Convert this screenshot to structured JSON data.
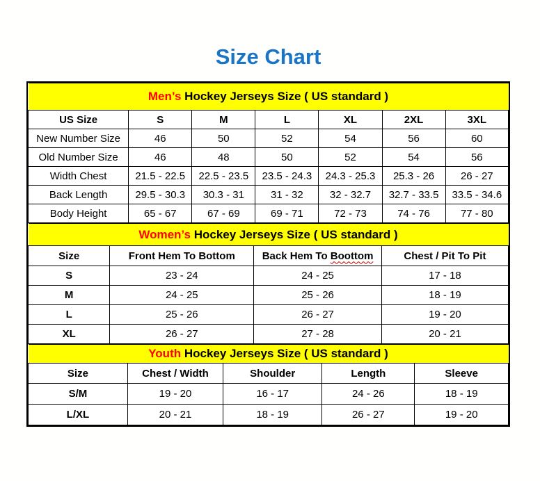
{
  "page": {
    "title": "Size Chart"
  },
  "colors": {
    "title_blue": "#1B74C4",
    "section_header_yellow": "#FFFF00",
    "section_highlight_red": "#FF0000",
    "border_black": "#000000"
  },
  "tables": [
    {
      "id": "mens",
      "title": {
        "highlight": "Men’s",
        "rest": "Hockey Jerseys Size ( US standard )"
      },
      "columns": [
        {
          "label": "US Size"
        },
        {
          "label": "S"
        },
        {
          "label": "M"
        },
        {
          "label": "L"
        },
        {
          "label": "XL"
        },
        {
          "label": "2XL"
        },
        {
          "label": "3XL"
        }
      ],
      "col_widths": [
        "20.9%",
        "13.2%",
        "13.2%",
        "13.2%",
        "13.2%",
        "13.2%",
        "13.1%"
      ],
      "rows": [
        {
          "label": "New Number Size",
          "values": [
            "46",
            "50",
            "52",
            "54",
            "56",
            "60"
          ]
        },
        {
          "label": "Old Number Size",
          "values": [
            "46",
            "48",
            "50",
            "52",
            "54",
            "56"
          ]
        },
        {
          "label": "Width Chest",
          "values": [
            "21.5 - 22.5",
            "22.5 - 23.5",
            "23.5 - 24.3",
            "24.3 - 25.3",
            "25.3 - 26",
            "26 - 27"
          ]
        },
        {
          "label": "Back Length",
          "values": [
            "29.5 - 30.3",
            "30.3 - 31",
            "31 - 32",
            "32 - 32.7",
            "32.7 - 33.5",
            "33.5 - 34.6"
          ]
        },
        {
          "label": "Body Height",
          "values": [
            "65 - 67",
            "67 - 69",
            "69 - 71",
            "72 - 73",
            "74 - 76",
            "77 - 80"
          ]
        }
      ]
    },
    {
      "id": "womens",
      "title": {
        "highlight": "Women’s",
        "rest": "Hockey Jerseys Size ( US standard )"
      },
      "columns": [
        {
          "label": "Size"
        },
        {
          "label": "Front Hem To Bottom"
        },
        {
          "label": "Back Hem To ",
          "misspelled": "Boottom"
        },
        {
          "label": "Chest / Pit To Pit"
        }
      ],
      "col_widths": [
        "17%",
        "30%",
        "26.6%",
        "26.4%"
      ],
      "rows": [
        {
          "label": "S",
          "values": [
            "23 - 24",
            "24 - 25",
            "17 - 18"
          ]
        },
        {
          "label": "M",
          "values": [
            "24 - 25",
            "25 - 26",
            "18 - 19"
          ]
        },
        {
          "label": "L",
          "values": [
            "25 - 26",
            "26 - 27",
            "19 - 20"
          ]
        },
        {
          "label": "XL",
          "values": [
            "26 - 27",
            "27 - 28",
            "20 - 21"
          ]
        }
      ]
    },
    {
      "id": "youth",
      "title": {
        "highlight": "Youth",
        "rest": "Hockey Jerseys Size ( US standard )"
      },
      "columns": [
        {
          "label": "Size"
        },
        {
          "label": "Chest / Width"
        },
        {
          "label": "Shoulder"
        },
        {
          "label": "Length"
        },
        {
          "label": "Sleeve"
        }
      ],
      "col_widths": [
        "20.7%",
        "19.9%",
        "20.6%",
        "19.3%",
        "19.5%"
      ],
      "rows": [
        {
          "label": "S/M",
          "values": [
            "19 - 20",
            "16 - 17",
            "24 - 26",
            "18 - 19"
          ]
        },
        {
          "label": "L/XL",
          "values": [
            "20 - 21",
            "18 - 19",
            "26 - 27",
            "19 - 20"
          ]
        }
      ]
    }
  ]
}
